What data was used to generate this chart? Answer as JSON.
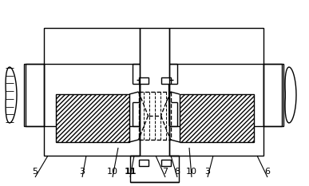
{
  "bg_color": "#ffffff",
  "line_color": "#000000",
  "figsize": [
    3.87,
    2.33
  ],
  "dpi": 100,
  "labels_info": [
    [
      "5",
      44,
      222,
      60,
      195,
      false
    ],
    [
      "3",
      103,
      222,
      108,
      195,
      false
    ],
    [
      "10",
      141,
      222,
      148,
      185,
      false
    ],
    [
      "11",
      163,
      222,
      168,
      195,
      true
    ],
    [
      "7",
      207,
      222,
      195,
      195,
      false
    ],
    [
      "8",
      222,
      222,
      214,
      195,
      false
    ],
    [
      "10",
      240,
      222,
      237,
      185,
      false
    ],
    [
      "3",
      260,
      222,
      267,
      195,
      false
    ],
    [
      "6",
      335,
      222,
      322,
      195,
      false
    ]
  ]
}
